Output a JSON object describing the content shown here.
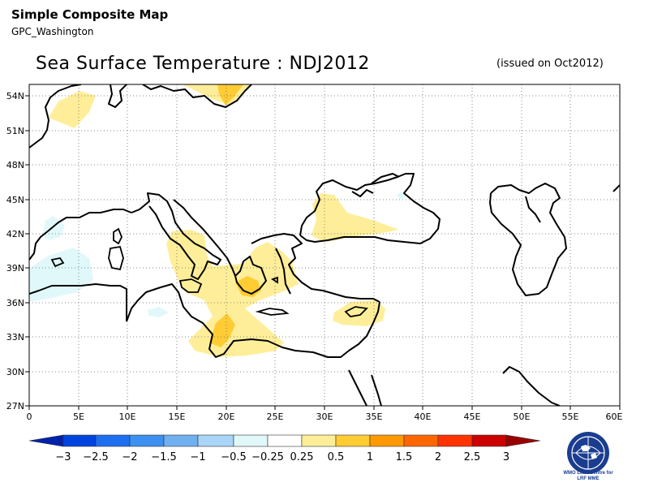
{
  "header": {
    "title": "Simple Composite Map",
    "subtitle": "GPC_Washington"
  },
  "map": {
    "title": "Sea Surface Temperature : NDJ2012",
    "issued": "(issued on Oct2012)",
    "lat_ticks": [
      "54N",
      "51N",
      "48N",
      "45N",
      "42N",
      "39N",
      "36N",
      "33N",
      "30N",
      "27N"
    ],
    "lon_ticks": [
      "0",
      "5E",
      "10E",
      "15E",
      "20E",
      "25E",
      "30E",
      "35E",
      "40E",
      "45E",
      "50E",
      "55E",
      "60E"
    ],
    "extent": {
      "lon": [
        0,
        60
      ],
      "lat": [
        27,
        55
      ]
    }
  },
  "colorbar": {
    "labels": [
      "−3",
      "−2.5",
      "−2",
      "−1.5",
      "−1",
      "−0.5",
      "−0.25",
      "0.25",
      "0.5",
      "1",
      "1.5",
      "2",
      "2.5",
      "3"
    ],
    "colors": [
      "#0022aa",
      "#0044dd",
      "#1e6ff0",
      "#3c90f0",
      "#6fb0f0",
      "#a8d5f8",
      "#e1f8fa",
      "#ffffff",
      "#ffee99",
      "#ffcc33",
      "#ff9900",
      "#ff6600",
      "#ff3300",
      "#cc0000",
      "#990000"
    ]
  },
  "logo": {
    "line1": "WMO Lead Centre for",
    "line2": "LRF MME"
  }
}
